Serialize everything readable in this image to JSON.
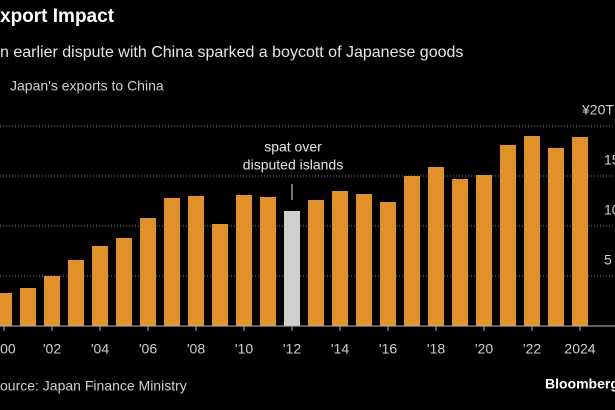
{
  "chart_data": {
    "type": "bar",
    "title": "xport Impact",
    "subtitle": "n earlier dispute with China sparked a boycott of Japanese goods",
    "legend": "Japan's exports to China",
    "annotation": [
      "spat over",
      "disputed islands"
    ],
    "source": "ource: Japan Finance Ministry",
    "brand": "Bloomberg",
    "categories": [
      "000",
      null,
      "'02",
      null,
      "'04",
      null,
      "'06",
      null,
      "'08",
      null,
      "'10",
      null,
      "'12",
      null,
      "'14",
      null,
      "'16",
      null,
      "'18",
      null,
      "'20",
      null,
      "'22",
      null,
      "2024"
    ],
    "values": [
      3.3,
      3.8,
      5.0,
      6.6,
      8.0,
      8.8,
      10.8,
      12.8,
      13.0,
      10.2,
      13.1,
      12.9,
      11.5,
      12.6,
      13.5,
      13.2,
      12.4,
      15.0,
      15.9,
      14.7,
      15.1,
      18.1,
      19.0,
      17.8,
      18.9
    ],
    "colors": [
      "#e0912a",
      "#e0912a",
      "#e0912a",
      "#e0912a",
      "#e0912a",
      "#e0912a",
      "#e0912a",
      "#e0912a",
      "#e0912a",
      "#e0912a",
      "#e0912a",
      "#e0912a",
      "#d0d0d0",
      "#e0912a",
      "#e0912a",
      "#e0912a",
      "#e0912a",
      "#e0912a",
      "#e0912a",
      "#e0912a",
      "#e0912a",
      "#e0912a",
      "#e0912a",
      "#e0912a",
      "#e0912a"
    ],
    "ylim": [
      0,
      20
    ],
    "yticks": [
      5,
      10,
      15,
      {
        "value": 20,
        "label": "¥20T"
      }
    ],
    "grid": true
  }
}
